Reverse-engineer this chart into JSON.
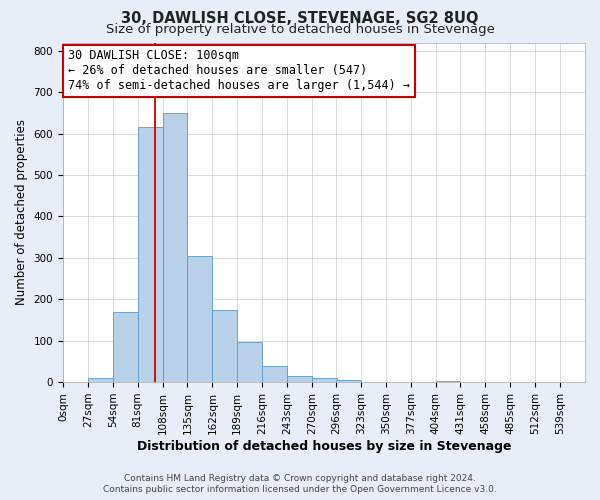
{
  "title": "30, DAWLISH CLOSE, STEVENAGE, SG2 8UQ",
  "subtitle": "Size of property relative to detached houses in Stevenage",
  "xlabel": "Distribution of detached houses by size in Stevenage",
  "ylabel": "Number of detached properties",
  "bin_labels": [
    "0sqm",
    "27sqm",
    "54sqm",
    "81sqm",
    "108sqm",
    "135sqm",
    "162sqm",
    "189sqm",
    "216sqm",
    "243sqm",
    "270sqm",
    "296sqm",
    "323sqm",
    "350sqm",
    "377sqm",
    "404sqm",
    "431sqm",
    "458sqm",
    "485sqm",
    "512sqm",
    "539sqm"
  ],
  "bar_heights": [
    0,
    10,
    170,
    615,
    650,
    305,
    175,
    97,
    40,
    15,
    10,
    5,
    0,
    0,
    0,
    3,
    0,
    0,
    0,
    0,
    0
  ],
  "bin_edges": [
    0,
    27,
    54,
    81,
    108,
    135,
    162,
    189,
    216,
    243,
    270,
    296,
    323,
    350,
    377,
    404,
    431,
    458,
    485,
    512,
    539,
    566
  ],
  "bar_color": "#b8d0e8",
  "bar_edge_color": "#5a9bc4",
  "vline_x": 100,
  "vline_color": "#cc0000",
  "ylim": [
    0,
    820
  ],
  "yticks": [
    0,
    100,
    200,
    300,
    400,
    500,
    600,
    700,
    800
  ],
  "annotation_line1": "30 DAWLISH CLOSE: 100sqm",
  "annotation_line2": "← 26% of detached houses are smaller (547)",
  "annotation_line3": "74% of semi-detached houses are larger (1,544) →",
  "annotation_box_color": "#cc0000",
  "annotation_box_fill": "#ffffff",
  "footer_line1": "Contains HM Land Registry data © Crown copyright and database right 2024.",
  "footer_line2": "Contains public sector information licensed under the Open Government Licence v3.0.",
  "background_color": "#e8eef8",
  "plot_bg_color": "#ffffff",
  "title_fontsize": 10.5,
  "subtitle_fontsize": 9.5,
  "xlabel_fontsize": 9,
  "ylabel_fontsize": 8.5,
  "tick_fontsize": 7.5,
  "annotation_fontsize": 8.5,
  "footer_fontsize": 6.5
}
